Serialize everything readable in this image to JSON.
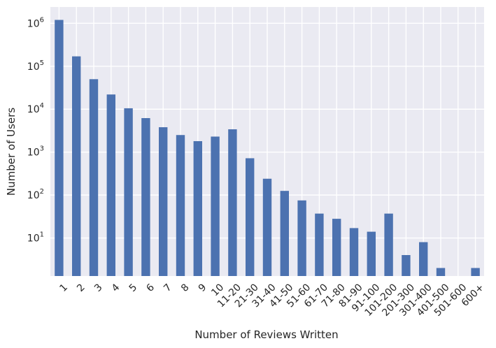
{
  "chart_data": {
    "type": "bar",
    "title": "",
    "xlabel": "Number of Reviews Written",
    "ylabel": "Number of Users",
    "yscale": "log",
    "ylim": [
      1.3,
      2400000
    ],
    "grid": true,
    "legend": "none",
    "colors": {
      "bar": "#4c72b0",
      "background": "#eaeaf2",
      "grid": "#ffffff",
      "text": "#262626"
    },
    "y_ticks": [
      {
        "base": "10",
        "exp": "1",
        "value": 10
      },
      {
        "base": "10",
        "exp": "2",
        "value": 100
      },
      {
        "base": "10",
        "exp": "3",
        "value": 1000
      },
      {
        "base": "10",
        "exp": "4",
        "value": 10000
      },
      {
        "base": "10",
        "exp": "5",
        "value": 100000
      },
      {
        "base": "10",
        "exp": "6",
        "value": 1000000
      }
    ],
    "categories": [
      "1",
      "2",
      "3",
      "4",
      "5",
      "6",
      "7",
      "8",
      "9",
      "10",
      "11-20",
      "21-30",
      "31-40",
      "41-50",
      "51-60",
      "61-70",
      "71-80",
      "81-90",
      "91-100",
      "101-200",
      "201-300",
      "301-400",
      "401-500",
      "501-600",
      "600+"
    ],
    "values": [
      1200000,
      170000,
      50000,
      22000,
      10500,
      6200,
      3800,
      2500,
      1800,
      2300,
      3400,
      720,
      240,
      125,
      75,
      37,
      28,
      17,
      14,
      37,
      4,
      8,
      2,
      0,
      2
    ]
  }
}
